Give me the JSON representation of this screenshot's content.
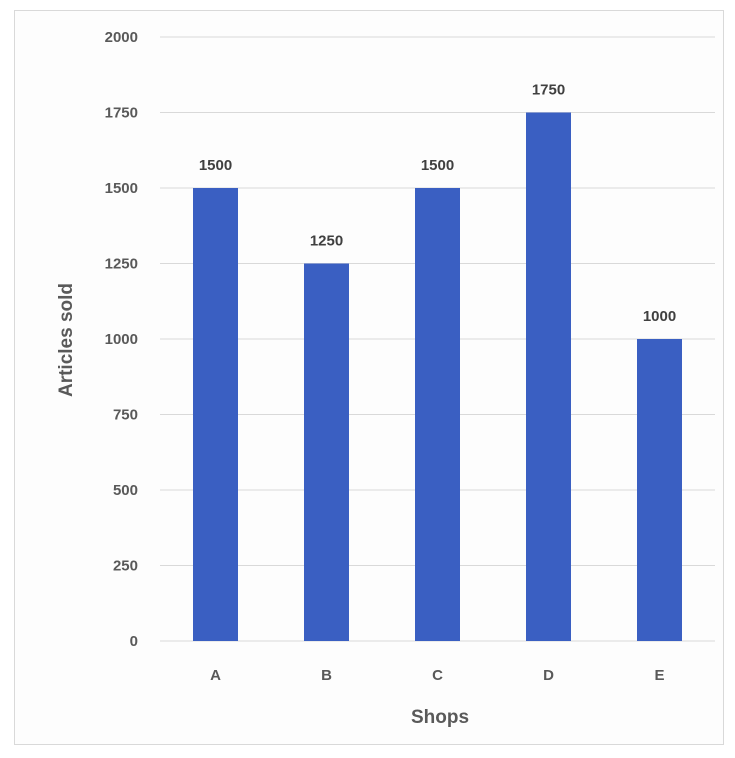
{
  "chart_data": {
    "type": "bar",
    "title": "",
    "xlabel": "Shops",
    "ylabel": "Articles sold",
    "categories": [
      "A",
      "B",
      "C",
      "D",
      "E"
    ],
    "values": [
      1500,
      1250,
      1500,
      1750,
      1000
    ],
    "data_labels": [
      "1500",
      "1250",
      "1500",
      "1750",
      "1000"
    ],
    "ylim": [
      0,
      2000
    ],
    "yticks": [
      0,
      250,
      500,
      750,
      1000,
      1250,
      1500,
      1750,
      2000
    ],
    "grid": true,
    "legend": "none",
    "bar_color": "#3a5fc2"
  }
}
